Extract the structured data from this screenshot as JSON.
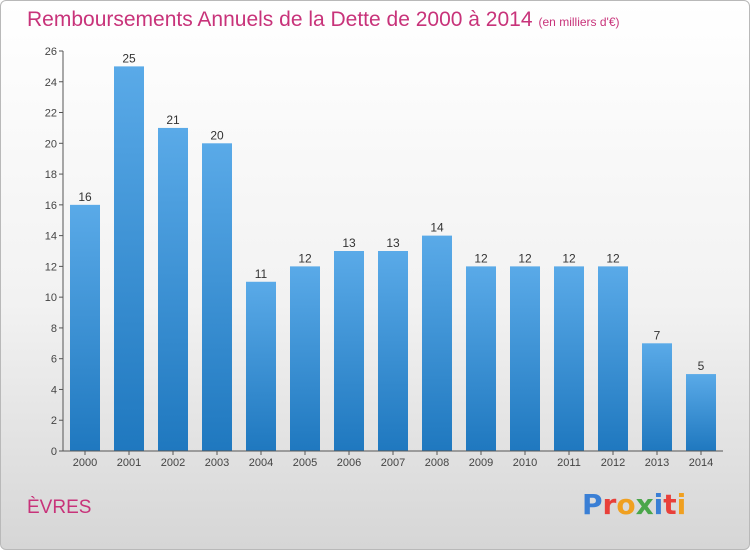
{
  "header": {
    "title": "Remboursements Annuels de la Dette de 2000 à 2014",
    "subtitle": "(en milliers d'€)"
  },
  "footer": {
    "city": "ÈVRES",
    "logo_text": "Proxiti",
    "logo_colors": [
      "#3a7fd5",
      "#e8403a",
      "#f0a020",
      "#4aa64a",
      "#3a7fd5",
      "#e8403a",
      "#f0a020"
    ]
  },
  "colors": {
    "accent": "#c8337a",
    "bar_top": "#5aaae8",
    "bar_bottom": "#1f78bf",
    "axis": "#555555"
  },
  "chart_data": {
    "type": "bar",
    "categories": [
      "2000",
      "2001",
      "2002",
      "2003",
      "2004",
      "2005",
      "2006",
      "2007",
      "2008",
      "2009",
      "2010",
      "2011",
      "2012",
      "2013",
      "2014"
    ],
    "values": [
      16,
      25,
      21,
      20,
      11,
      12,
      13,
      13,
      14,
      12,
      12,
      12,
      12,
      7,
      5
    ],
    "ylim": [
      0,
      26
    ],
    "yticks": [
      0,
      2,
      4,
      6,
      8,
      10,
      12,
      14,
      16,
      18,
      20,
      22,
      24,
      26
    ],
    "grid": false,
    "data_labels": true
  }
}
